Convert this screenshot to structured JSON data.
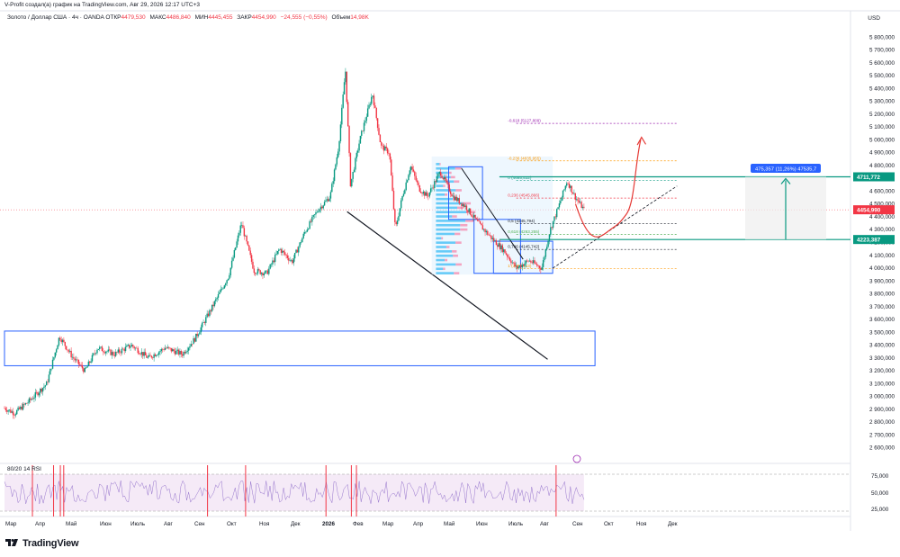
{
  "header": {
    "author_line": "V-Profit создал(а) график на TradingView.com, Авг 29, 2026 12:17 UTC+3"
  },
  "symbol": {
    "name": "Золото / Доллар США · 4ч · OANDA",
    "open_label": "ОТКР",
    "open": "4479,530",
    "high_label": "МАКС",
    "high": "4486,840",
    "low_label": "МИН",
    "low": "4445,455",
    "close_label": "ЗАКР",
    "close": "4454,990",
    "change": "−24,555 (−0,55%)",
    "volume_label": "Объем",
    "volume": "14,98K"
  },
  "currency": "USD",
  "rsi": {
    "label": "80/20 14 RSI"
  },
  "footer": {
    "brand": "TradingView"
  },
  "colors": {
    "up": "#089981",
    "down": "#f23645",
    "rect": "#2962ff",
    "teal": "#089981",
    "measure_fill": "#eeeeee",
    "rsi_band": "#f3e5f5",
    "rsi_line": "#7e57c2",
    "profile": "#4fc3f7"
  },
  "chart_data": {
    "type": "candlestick",
    "y_axis": {
      "range": [
        2500,
        5900
      ],
      "ticks": [
        "5 800,000",
        "5 700,000",
        "5 600,000",
        "5 500,000",
        "5 400,000",
        "5 300,000",
        "5 200,000",
        "5 100,000",
        "5 000,000",
        "4 900,000",
        "4 800,000",
        "4 700,000",
        "4 600,000",
        "4 500,000",
        "4 400,000",
        "4 300,000",
        "4 200,000",
        "4 100,000",
        "4 000,000",
        "3 900,000",
        "3 800,000",
        "3 700,000",
        "3 600,000",
        "3 500,000",
        "3 400,000",
        "3 300,000",
        "3 200,000",
        "3 100,000",
        "3 000,000",
        "2 900,000",
        "2 800,000",
        "2 700,000",
        "2 600,000"
      ]
    },
    "x_axis": {
      "ticks": [
        "Мар",
        "Апр",
        "Май",
        "Июн",
        "Июль",
        "Авг",
        "Сен",
        "Окт",
        "Ноя",
        "Дек",
        "2026",
        "Фев",
        "Мар",
        "Апр",
        "Май",
        "Июн",
        "Июль",
        "Авг",
        "Сен",
        "Окт",
        "Ноя",
        "Дек"
      ]
    },
    "price_path": [
      [
        0,
        2910
      ],
      [
        0.012,
        2870
      ],
      [
        0.03,
        2970
      ],
      [
        0.05,
        3100
      ],
      [
        0.065,
        3470
      ],
      [
        0.08,
        3310
      ],
      [
        0.095,
        3200
      ],
      [
        0.11,
        3380
      ],
      [
        0.13,
        3330
      ],
      [
        0.15,
        3400
      ],
      [
        0.17,
        3300
      ],
      [
        0.19,
        3380
      ],
      [
        0.21,
        3330
      ],
      [
        0.225,
        3450
      ],
      [
        0.245,
        3690
      ],
      [
        0.265,
        3940
      ],
      [
        0.28,
        4350
      ],
      [
        0.295,
        3980
      ],
      [
        0.31,
        3960
      ],
      [
        0.325,
        4150
      ],
      [
        0.34,
        4050
      ],
      [
        0.355,
        4280
      ],
      [
        0.37,
        4450
      ],
      [
        0.385,
        4560
      ],
      [
        0.395,
        4950
      ],
      [
        0.403,
        5550
      ],
      [
        0.409,
        4650
      ],
      [
        0.42,
        5000
      ],
      [
        0.435,
        5360
      ],
      [
        0.445,
        4950
      ],
      [
        0.455,
        4900
      ],
      [
        0.462,
        4300
      ],
      [
        0.47,
        4550
      ],
      [
        0.48,
        4800
      ],
      [
        0.49,
        4620
      ],
      [
        0.5,
        4560
      ],
      [
        0.515,
        4750
      ],
      [
        0.53,
        4560
      ],
      [
        0.545,
        4480
      ],
      [
        0.56,
        4350
      ],
      [
        0.575,
        4240
      ],
      [
        0.59,
        4140
      ],
      [
        0.605,
        4000
      ],
      [
        0.62,
        4060
      ],
      [
        0.635,
        4000
      ],
      [
        0.645,
        4300
      ],
      [
        0.655,
        4480
      ],
      [
        0.665,
        4680
      ],
      [
        0.675,
        4550
      ],
      [
        0.685,
        4455
      ]
    ],
    "last_price": "4454,990",
    "price_labels": [
      {
        "text": "4711,772",
        "value": 4711.772,
        "color": "#089981"
      },
      {
        "text": "4454,990",
        "value": 4454.99,
        "color": "#f23645"
      },
      {
        "text": "4223,387",
        "value": 4223.387,
        "color": "#089981"
      }
    ],
    "fib_levels": [
      {
        "text": "-0,618 (5127,809)",
        "value": 5128
      },
      {
        "text": "-0,236 (4835,955)",
        "value": 4836
      },
      {
        "text": "0 (4685,532)",
        "value": 4685
      },
      {
        "text": "0,236 (4545,866)",
        "value": 4546
      },
      {
        "text": "0,5 (4345,794)",
        "value": 4346
      },
      {
        "text": "0,618 (4263,255)",
        "value": 4263
      },
      {
        "text": "0,786 (4145,742)",
        "value": 4146
      },
      {
        "text": "1 (3998,213)",
        "value": 3998
      }
    ],
    "measure_label": "475,357 (11,26%) 47535,7",
    "rsi_ticks": [
      "75,000",
      "50,000",
      "25,000"
    ]
  }
}
